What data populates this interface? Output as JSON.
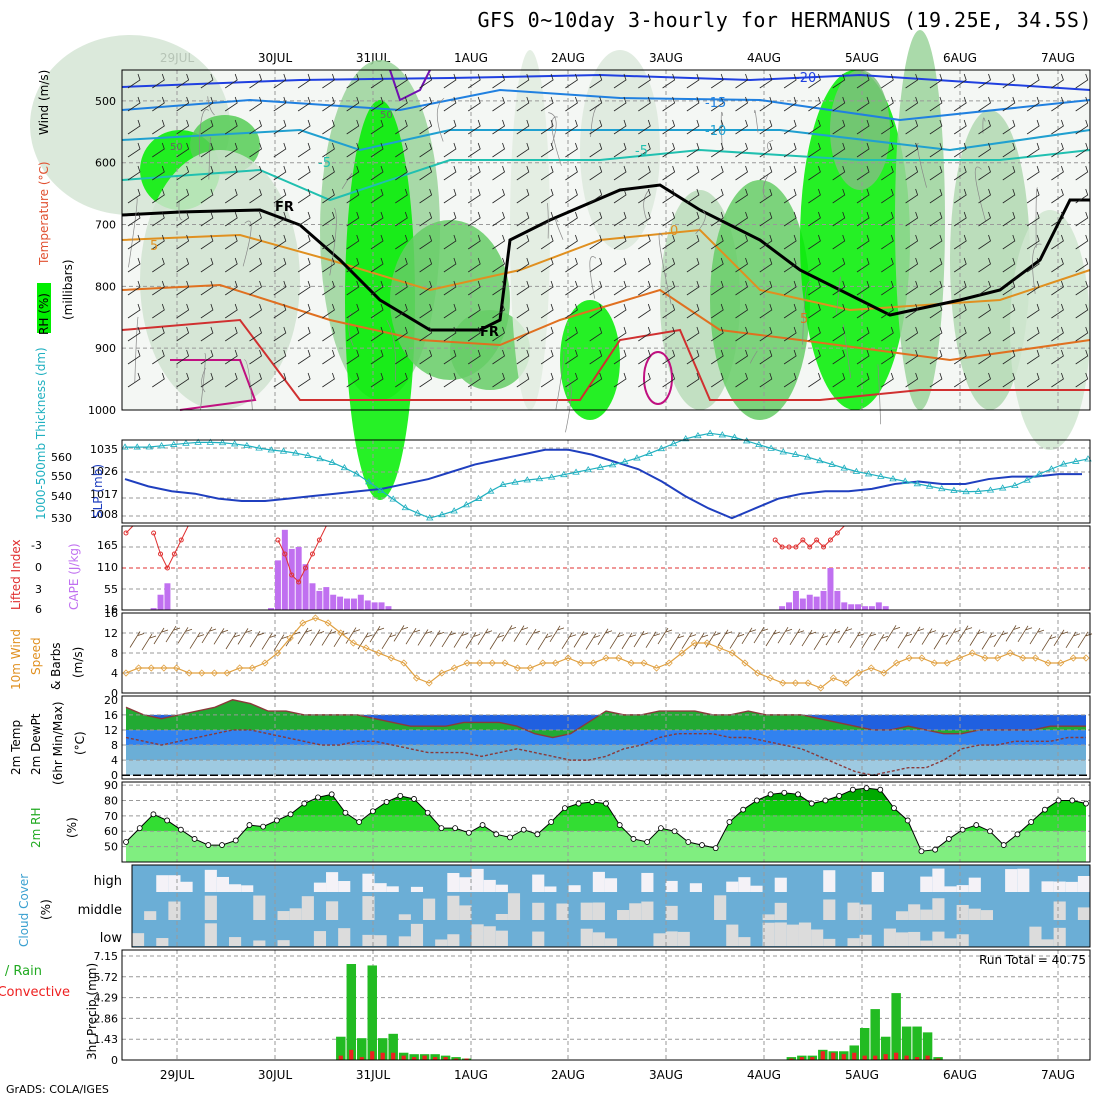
{
  "header": {
    "title": "GFS 0~10day 3-hourly for HERMANUS (19.25E, 34.5S)",
    "footer": "GrADS: COLA/IGES"
  },
  "time_axis": {
    "labels": [
      "29JUL",
      "30JUL",
      "31JUL",
      "1AUG",
      "2AUG",
      "3AUG",
      "4AUG",
      "5AUG",
      "6AUG",
      "7AUG"
    ]
  },
  "colors": {
    "rh_green": "#00ee00",
    "cloud_blue": "#6baed6",
    "slp_blue": "#1f3fbf",
    "thickness_cyan": "#20b0c0",
    "cape_purple": "#c070f0",
    "lifted_red": "#e03030",
    "wind_orange": "#e0a040",
    "precip_green": "#22bb22",
    "precip_red": "#ee2020"
  },
  "chart_data": [
    {
      "id": "upper-air",
      "type": "heatmap",
      "ylabel_parts": [
        "RH (%)",
        "Temperature (°C)",
        "Wind (m/s)"
      ],
      "ylabel_secondary": "(millibars)",
      "yticks": [
        500,
        600,
        700,
        800,
        900,
        1000
      ],
      "contour_labels": [
        "-20",
        "-15",
        "-10",
        "-5",
        "-5",
        "0",
        "5",
        "5",
        "FR",
        "FR"
      ],
      "rh_levels": [
        "50",
        "50"
      ]
    },
    {
      "id": "slp-thickness",
      "type": "line",
      "ylabel_left": "1000-500mb Thickness (dm)",
      "ylabel_right": "SLP (mb)",
      "yticks_left": [
        "560",
        "550",
        "540",
        "530"
      ],
      "yticks_right": [
        "1035",
        "1026",
        "1017",
        "1008"
      ],
      "series": [
        {
          "name": "SLP (mb)",
          "values": [
            1022,
            1019,
            1017,
            1016,
            1014,
            1013,
            1013,
            1014,
            1015,
            1016,
            1017,
            1018,
            1020,
            1022,
            1025,
            1028,
            1030,
            1032,
            1034,
            1034,
            1032,
            1029,
            1026,
            1021,
            1015,
            1010,
            1006,
            1010,
            1014,
            1016,
            1017,
            1017,
            1018,
            1020,
            1021,
            1020,
            1020,
            1022,
            1023,
            1023,
            1024,
            1024
          ]
        },
        {
          "name": "1000-500mb Thickness (dm)",
          "values": [
            560,
            560,
            561,
            562,
            562,
            561,
            559,
            558,
            556,
            553,
            548,
            541,
            534,
            530,
            533,
            538,
            544,
            546,
            547,
            549,
            551,
            553,
            556,
            560,
            564,
            566,
            564,
            561,
            558,
            556,
            553,
            550,
            548,
            546,
            544,
            542,
            541,
            542,
            544,
            549,
            553,
            555
          ]
        }
      ]
    },
    {
      "id": "cape-li",
      "type": "bar",
      "ylabel_left": "Lifted Index",
      "ylabel_right": "CAPE (J/kg)",
      "yticks_left": [
        "-3",
        "0",
        "3",
        "6"
      ],
      "yticks_right": [
        "165",
        "110",
        "55",
        "16"
      ],
      "cape_values": [
        0,
        0,
        0,
        0,
        5,
        40,
        70,
        0,
        0,
        0,
        0,
        0,
        0,
        0,
        0,
        0,
        0,
        0,
        0,
        0,
        0,
        5,
        130,
        210,
        160,
        165,
        120,
        70,
        50,
        60,
        40,
        35,
        30,
        30,
        40,
        25,
        20,
        20,
        10,
        0,
        0,
        0,
        0,
        0,
        0,
        0,
        0,
        0,
        0,
        0,
        0,
        0,
        0,
        0,
        0,
        0,
        0,
        0,
        0,
        0,
        0,
        0,
        0,
        0,
        0,
        0,
        0,
        0,
        0,
        0,
        0,
        0,
        0,
        0,
        0,
        0,
        0,
        0,
        0,
        0,
        0,
        0,
        0,
        0,
        0,
        0,
        0,
        0,
        0,
        0,
        0,
        0,
        0,
        0,
        0,
        10,
        20,
        50,
        30,
        40,
        35,
        50,
        110,
        50,
        20,
        15,
        15,
        10,
        10,
        20,
        10,
        0,
        0,
        0,
        0,
        0,
        0,
        0,
        0,
        0,
        0,
        0,
        0,
        0,
        0,
        0,
        0,
        0,
        0,
        0,
        0,
        0,
        0,
        0,
        0,
        0,
        0,
        0,
        0,
        0
      ],
      "li_values": [
        5,
        6,
        6,
        6,
        5,
        2,
        0,
        2,
        4,
        6,
        6,
        6,
        6,
        6,
        6,
        6,
        6,
        6,
        6,
        6,
        6,
        6,
        4,
        2,
        -1,
        -2,
        0,
        2,
        4,
        6,
        6,
        6,
        6,
        6,
        6,
        6,
        6,
        6,
        6,
        6,
        6,
        6,
        6,
        6,
        6,
        6,
        6,
        6,
        6,
        6,
        6,
        6,
        6,
        6,
        6,
        6,
        6,
        6,
        6,
        6,
        6,
        6,
        6,
        6,
        6,
        6,
        6,
        6,
        6,
        6,
        6,
        6,
        6,
        6,
        6,
        6,
        6,
        6,
        6,
        6,
        6,
        6,
        6,
        6,
        6,
        6,
        6,
        6,
        6,
        6,
        6,
        6,
        6,
        6,
        4,
        3,
        3,
        3,
        4,
        3,
        4,
        3,
        4,
        5,
        6,
        6,
        6,
        6,
        6,
        6,
        6,
        6,
        6,
        6,
        6,
        6,
        6,
        6,
        6,
        6,
        6,
        6,
        6,
        6,
        6,
        6,
        6,
        6,
        6,
        6,
        6,
        6,
        6,
        6,
        6,
        6,
        6,
        6,
        6,
        6
      ]
    },
    {
      "id": "wind10m",
      "type": "line",
      "ylabel_parts": [
        "10m Wind",
        "Speed",
        "& Barbs",
        "(m/s)"
      ],
      "yticks": [
        "16",
        "12",
        "8",
        "4",
        "0"
      ],
      "series": [
        {
          "name": "10m Wind Speed",
          "values": [
            4,
            5,
            5,
            5,
            5,
            4,
            4,
            4,
            4,
            5,
            5,
            6,
            8,
            11,
            14,
            15,
            14,
            12,
            10,
            9,
            8,
            7,
            6,
            3,
            2,
            4,
            5,
            6,
            6,
            6,
            6,
            5,
            5,
            6,
            6,
            7,
            6,
            6,
            7,
            7,
            6,
            6,
            5,
            6,
            8,
            10,
            10,
            9,
            8,
            6,
            4,
            3,
            2,
            2,
            2,
            1,
            3,
            2,
            4,
            5,
            4,
            6,
            7,
            7,
            6,
            6,
            7,
            8,
            7,
            7,
            8,
            7,
            7,
            6,
            6,
            7,
            7
          ]
        }
      ]
    },
    {
      "id": "temp-dewpt",
      "type": "area",
      "ylabel_parts": [
        "2m Temp",
        "2m DewPt",
        "(6hr Min/Max)",
        "(°C)"
      ],
      "yticks": [
        "20",
        "16",
        "12",
        "8",
        "4",
        "0"
      ],
      "series": [
        {
          "name": "2m Temp",
          "values": [
            18,
            16,
            15,
            16,
            17,
            18,
            20,
            19,
            17,
            17,
            16,
            16,
            16,
            16,
            15,
            14,
            13,
            13,
            13,
            14,
            14,
            14,
            13,
            11,
            10,
            11,
            14,
            17,
            16,
            16,
            17,
            17,
            17,
            16,
            16,
            17,
            16,
            16,
            16,
            15,
            14,
            13,
            12,
            12,
            13,
            12,
            11,
            11,
            12,
            12,
            12,
            12,
            13,
            13,
            13
          ]
        },
        {
          "name": "2m DewPt",
          "values": [
            10,
            9,
            8,
            9,
            10,
            11,
            12,
            12,
            11,
            10,
            9,
            8,
            8,
            9,
            9,
            8,
            7,
            6,
            6,
            6,
            5,
            6,
            7,
            6,
            5,
            4,
            4,
            5,
            7,
            8,
            10,
            11,
            11,
            11,
            10,
            10,
            9,
            8,
            7,
            5,
            3,
            1,
            0,
            1,
            2,
            2,
            4,
            7,
            8,
            8,
            9,
            9,
            9,
            10,
            10
          ]
        }
      ]
    },
    {
      "id": "rh2m",
      "type": "area",
      "ylabel_parts": [
        "2m RH",
        "(%)"
      ],
      "yticks": [
        "90",
        "80",
        "70",
        "60",
        "50"
      ],
      "series": [
        {
          "name": "2m RH",
          "values": [
            53,
            62,
            71,
            67,
            61,
            55,
            51,
            51,
            54,
            64,
            63,
            67,
            71,
            78,
            82,
            84,
            72,
            66,
            73,
            79,
            83,
            81,
            72,
            62,
            62,
            59,
            64,
            58,
            56,
            61,
            58,
            66,
            75,
            78,
            79,
            78,
            64,
            55,
            53,
            62,
            60,
            53,
            51,
            49,
            66,
            74,
            80,
            84,
            85,
            84,
            78,
            80,
            83,
            87,
            88,
            87,
            75,
            67,
            47,
            48,
            55,
            61,
            64,
            60,
            51,
            58,
            66,
            74,
            80,
            80,
            78
          ]
        }
      ]
    },
    {
      "id": "cloud",
      "type": "heatmap",
      "ylabel_parts": [
        "Cloud Cover",
        "(%)"
      ],
      "levels": [
        "high",
        "middle",
        "low"
      ]
    },
    {
      "id": "precip",
      "type": "bar",
      "ylabel_left_parts": [
        "Total / Rain",
        "Convective"
      ],
      "ylabel_right": "3hr Precip (mm)",
      "yticks": [
        "7.15",
        "5.72",
        "4.29",
        "2.86",
        "1.43",
        "0"
      ],
      "annotation": "Run Total = 40.75",
      "total_values": [
        0,
        0,
        0,
        0,
        0,
        0,
        0,
        0,
        0,
        0,
        0,
        0,
        0,
        0,
        0,
        0,
        0,
        0,
        0,
        0,
        1.6,
        6.6,
        1.5,
        6.5,
        1.5,
        1.8,
        0.5,
        0.4,
        0.4,
        0.4,
        0.3,
        0.2,
        0.1,
        0,
        0,
        0,
        0,
        0,
        0,
        0,
        0,
        0,
        0,
        0,
        0,
        0,
        0,
        0,
        0,
        0,
        0,
        0,
        0,
        0,
        0,
        0,
        0,
        0,
        0,
        0,
        0,
        0,
        0,
        0.2,
        0.3,
        0.3,
        0.7,
        0.6,
        0.6,
        1.0,
        2.2,
        3.5,
        1.6,
        4.6,
        2.3,
        2.3,
        1.9,
        0.2,
        0,
        0,
        0,
        0,
        0,
        0,
        0,
        0,
        0,
        0,
        0,
        0,
        0,
        0
      ],
      "convective_values": [
        0,
        0,
        0,
        0,
        0,
        0,
        0,
        0,
        0,
        0,
        0,
        0,
        0,
        0,
        0,
        0,
        0,
        0,
        0,
        0,
        0.3,
        0.7,
        0.2,
        0.6,
        0.5,
        0.5,
        0.3,
        0.2,
        0.3,
        0.2,
        0.2,
        0.1,
        0.1,
        0,
        0,
        0,
        0,
        0,
        0,
        0,
        0,
        0,
        0,
        0,
        0,
        0,
        0,
        0,
        0,
        0,
        0,
        0,
        0,
        0,
        0,
        0,
        0,
        0,
        0,
        0,
        0,
        0,
        0,
        0.1,
        0.2,
        0.2,
        0.6,
        0.5,
        0.4,
        0.5,
        0.3,
        0.3,
        0.4,
        0.5,
        0.3,
        0.2,
        0.3,
        0.1,
        0,
        0,
        0,
        0,
        0,
        0,
        0,
        0,
        0,
        0,
        0,
        0,
        0,
        0
      ]
    }
  ]
}
